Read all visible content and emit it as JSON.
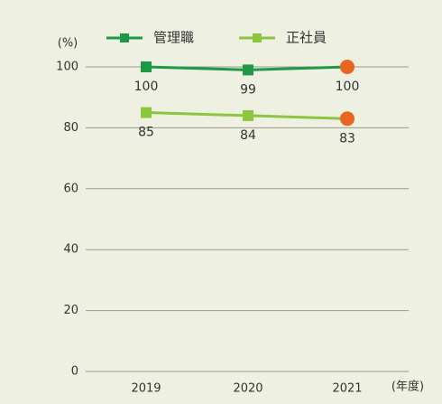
{
  "chart_data": {
    "type": "line",
    "y_label": "(%)",
    "x_label": "(年度)",
    "categories": [
      "2019",
      "2020",
      "2021"
    ],
    "series": [
      {
        "name": "管理職",
        "color": "#1e9a46",
        "values": [
          100,
          99,
          100
        ]
      },
      {
        "name": "正社員",
        "color": "#8cc63e",
        "values": [
          85,
          84,
          83
        ]
      }
    ],
    "highlight_color": "#e8661f",
    "ylim": [
      0,
      100
    ],
    "yticks": [
      0,
      20,
      40,
      60,
      80,
      100
    ],
    "grid": true
  }
}
